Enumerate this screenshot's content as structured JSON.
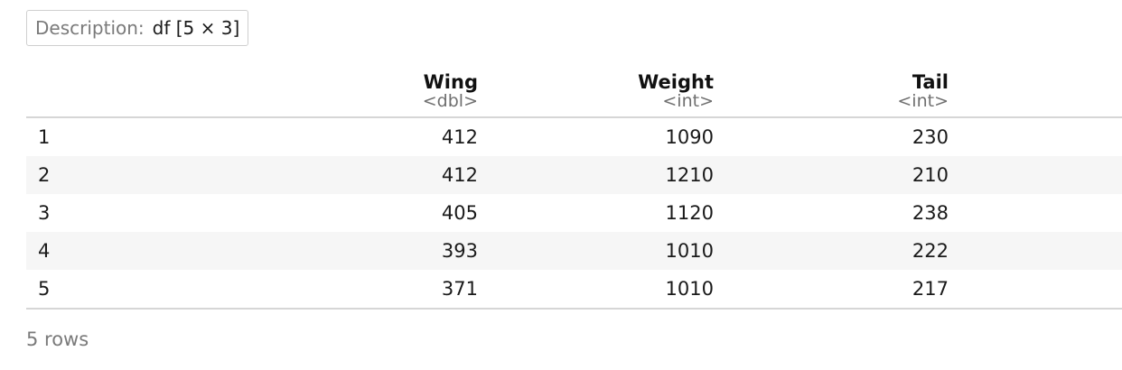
{
  "description": {
    "label": "Description:",
    "value": "df [5 × 3]"
  },
  "table": {
    "columns": [
      {
        "name": "Wing",
        "type": "<dbl>"
      },
      {
        "name": "Weight",
        "type": "<int>"
      },
      {
        "name": "Tail",
        "type": "<int>"
      }
    ],
    "rows": [
      {
        "index": "1",
        "cells": [
          "412",
          "1090",
          "230"
        ]
      },
      {
        "index": "2",
        "cells": [
          "412",
          "1210",
          "210"
        ]
      },
      {
        "index": "3",
        "cells": [
          "405",
          "1120",
          "238"
        ]
      },
      {
        "index": "4",
        "cells": [
          "393",
          "1010",
          "222"
        ]
      },
      {
        "index": "5",
        "cells": [
          "371",
          "1010",
          "217"
        ]
      }
    ]
  },
  "footer": {
    "row_count": "5 rows"
  }
}
